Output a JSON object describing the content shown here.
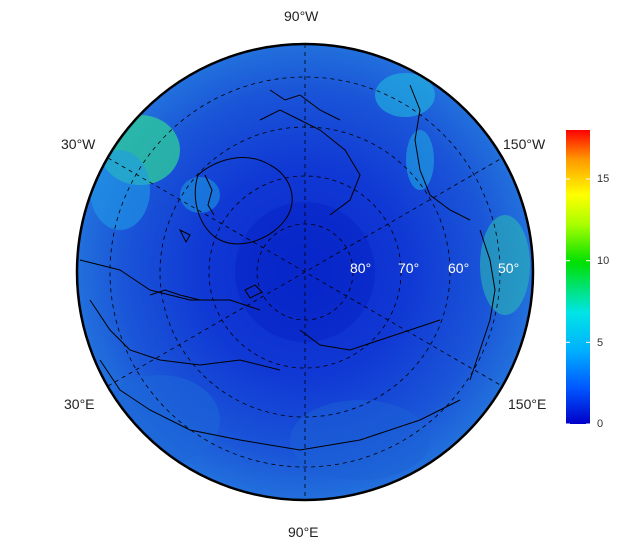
{
  "map": {
    "projection": "north polar stereographic",
    "longitude_labels": {
      "top": "90°W",
      "upper_left": "30°W",
      "upper_right": "150°W",
      "lower_left": "30°E",
      "lower_right": "150°E",
      "bottom": "90°E"
    },
    "latitude_labels": [
      "80°",
      "70°",
      "60°",
      "50°"
    ],
    "colors": {
      "ocean_base": "#1f4fd6",
      "pole_base": "#0d2fd0",
      "coast": "#000000",
      "graticule": "#000000"
    }
  },
  "colorbar": {
    "min": 0,
    "max": 18,
    "ticks": [
      "0",
      "5",
      "10",
      "15"
    ],
    "tick_values": [
      0,
      5,
      10,
      15
    ],
    "gradient": [
      "#0000c8",
      "#0055ff",
      "#00b0ff",
      "#00e5e5",
      "#00e000",
      "#aaff00",
      "#ffff00",
      "#ff9900",
      "#ff0000"
    ]
  }
}
